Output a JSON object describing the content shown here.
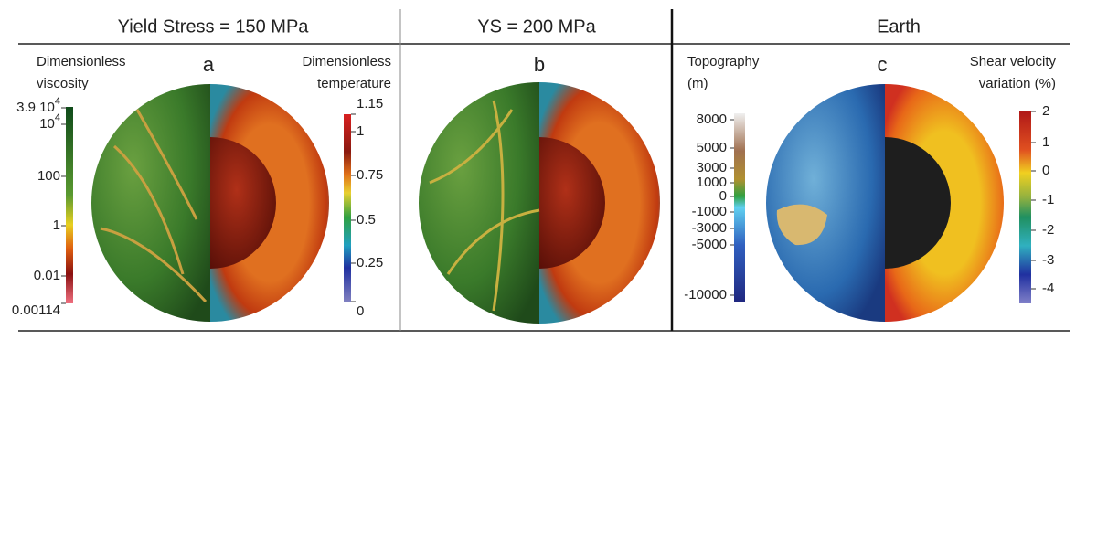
{
  "panels": [
    {
      "header": "Yield Stress = 150 MPa",
      "letter": "a",
      "left_bar": {
        "title": [
          "Dimensionless",
          "viscosity"
        ],
        "ticks": [
          {
            "text": "3.9 10",
            "sup": "4"
          },
          {
            "text": "10",
            "sup": "4"
          },
          {
            "text": "100"
          },
          {
            "text": "1"
          },
          {
            "text": "0.01"
          },
          {
            "text": "0.00114"
          }
        ]
      },
      "right_bar": {
        "title": [
          "Dimensionless",
          "temperature"
        ],
        "ticks": [
          {
            "text": "1.15"
          },
          {
            "text": "1"
          },
          {
            "text": "0.75"
          },
          {
            "text": "0.5"
          },
          {
            "text": "0.25"
          },
          {
            "text": "0"
          }
        ]
      }
    },
    {
      "header": "YS = 200 MPa",
      "letter": "b"
    },
    {
      "header": "Earth",
      "letter": "c",
      "left_bar": {
        "title": [
          "Topography",
          "(m)"
        ],
        "ticks": [
          {
            "text": "8000"
          },
          {
            "text": "5000"
          },
          {
            "text": "3000"
          },
          {
            "text": "1000"
          },
          {
            "text": "0"
          },
          {
            "text": "-1000"
          },
          {
            "text": "-3000"
          },
          {
            "text": "-5000"
          },
          {
            "text": "-10000"
          }
        ]
      },
      "right_bar": {
        "title": [
          "Shear velocity",
          "variation (%)"
        ],
        "ticks": [
          {
            "text": "2"
          },
          {
            "text": "1"
          },
          {
            "text": "0"
          },
          {
            "text": "-1"
          },
          {
            "text": "-2"
          },
          {
            "text": "-3"
          },
          {
            "text": "-4"
          }
        ]
      }
    }
  ]
}
